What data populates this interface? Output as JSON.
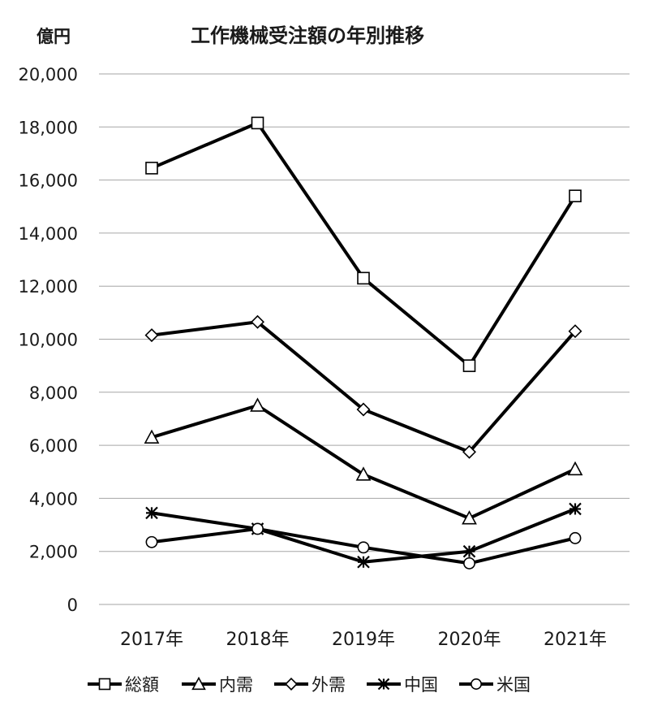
{
  "chart_data": {
    "type": "line",
    "title": "工作機械受注額の年別推移",
    "ylabel": "億円",
    "xlabel": "",
    "categories": [
      "2017年",
      "2018年",
      "2019年",
      "2020年",
      "2021年"
    ],
    "ylim": [
      0,
      20000
    ],
    "yticks": [
      0,
      2000,
      4000,
      6000,
      8000,
      10000,
      12000,
      14000,
      16000,
      18000,
      20000
    ],
    "ytick_labels": [
      "0",
      "2,000",
      "4,000",
      "6,000",
      "8,000",
      "10,000",
      "12,000",
      "14,000",
      "16,000",
      "18,000",
      "20,000"
    ],
    "grid": true,
    "legend_position": "bottom",
    "series": [
      {
        "name": "総額",
        "marker": "square",
        "values": [
          16450,
          18150,
          12300,
          9000,
          15400
        ]
      },
      {
        "name": "内需",
        "marker": "triangle",
        "values": [
          6300,
          7500,
          4900,
          3250,
          5100
        ]
      },
      {
        "name": "外需",
        "marker": "diamond",
        "values": [
          10150,
          10650,
          7350,
          5750,
          10300
        ]
      },
      {
        "name": "中国",
        "marker": "asterisk",
        "values": [
          3450,
          2850,
          1600,
          2000,
          3600
        ]
      },
      {
        "name": "米国",
        "marker": "circle",
        "values": [
          2350,
          2850,
          2150,
          1550,
          2500
        ]
      }
    ]
  }
}
